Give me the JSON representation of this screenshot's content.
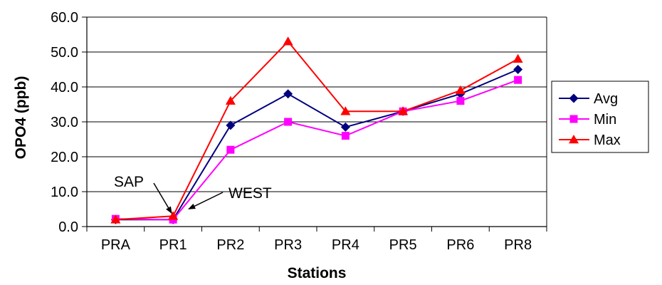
{
  "chart_data": {
    "type": "line",
    "categories": [
      "PRA",
      "PR1",
      "PR2",
      "PR3",
      "PR4",
      "PR5",
      "PR6",
      "PR8"
    ],
    "series": [
      {
        "name": "Avg",
        "color": "#000080",
        "marker": "diamond",
        "values": [
          2.0,
          2.0,
          29.0,
          38.0,
          28.5,
          33.0,
          38.0,
          45.0
        ]
      },
      {
        "name": "Min",
        "color": "#ff00ff",
        "marker": "square",
        "values": [
          2.2,
          2.0,
          22.0,
          30.0,
          26.0,
          33.0,
          36.0,
          42.0
        ]
      },
      {
        "name": "Max",
        "color": "#ff0000",
        "marker": "triangle",
        "values": [
          2.0,
          3.0,
          36.0,
          53.0,
          33.0,
          33.0,
          39.0,
          48.0
        ]
      }
    ],
    "xlabel": "Stations",
    "ylabel": "OPO4 (ppb)",
    "ylim": [
      0,
      60
    ],
    "yticks": [
      "0.0",
      "10.0",
      "20.0",
      "30.0",
      "40.0",
      "50.0",
      "60.0"
    ],
    "grid": "horizontal",
    "legend_position": "right",
    "annotations": [
      {
        "text": "SAP",
        "target_category": "PR1"
      },
      {
        "text": "WEST",
        "target_category": "PR1"
      }
    ]
  }
}
